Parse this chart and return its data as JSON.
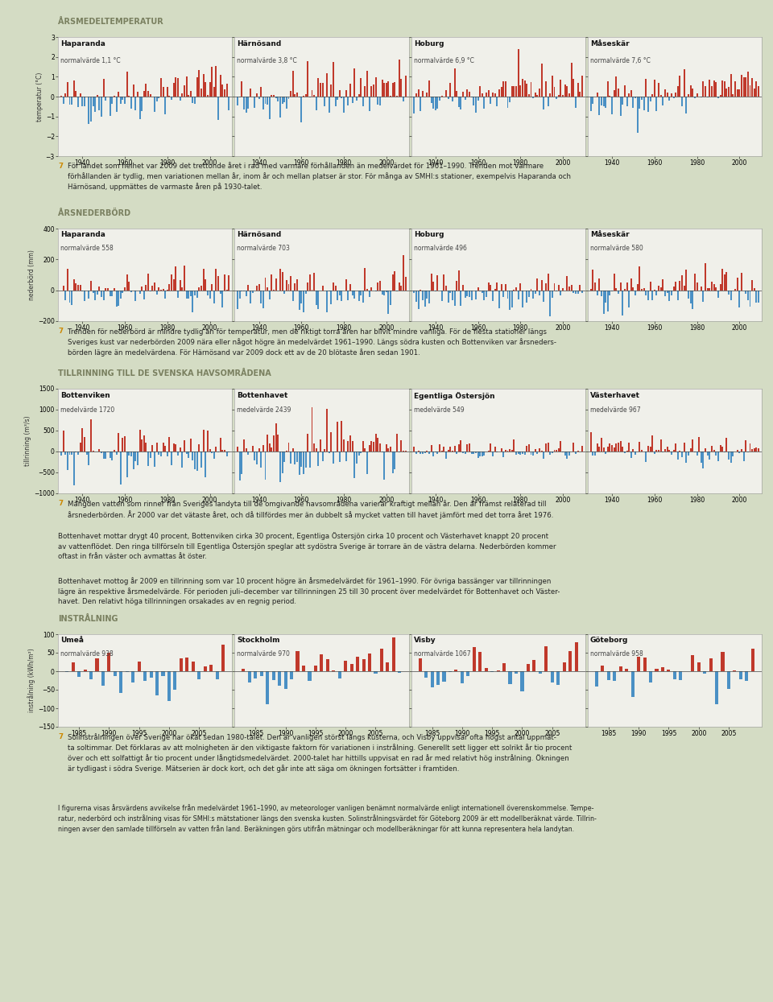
{
  "bg_color": "#d4dcc4",
  "chart_bg": "#f0f0ea",
  "red_color": "#c0392b",
  "blue_color": "#4a90c4",
  "title_color": "#7a8060",
  "text_color": "#222222",
  "section1_title": "ÅRSMEDELTEMPERATUR",
  "section1_ylabel": "temperatur (°C)",
  "section1_ylim": [
    -3,
    3
  ],
  "section1_yticks": [
    -3,
    -2,
    -1,
    0,
    1,
    2,
    3
  ],
  "section1_stations": [
    "Haparanda",
    "Härnösand",
    "Hoburg",
    "Måseskär"
  ],
  "section1_normals": [
    "normalvärde 1,1 °C",
    "normalvärde 3,8 °C",
    "normalvärde 6,9 °C",
    "normalvärde 7,6 °C"
  ],
  "section1_xticks": [
    1940,
    1960,
    1980,
    2000
  ],
  "section2_title": "ÅRSNEDERBÖRD",
  "section2_ylabel": "nederbörd (mm)",
  "section2_ylim": [
    -200,
    400
  ],
  "section2_yticks": [
    -200,
    0,
    200,
    400
  ],
  "section2_stations": [
    "Haparanda",
    "Härnösand",
    "Hoburg",
    "Måseskär"
  ],
  "section2_normals": [
    "normalvärde 558",
    "normalvärde 703",
    "normalvärde 496",
    "normalvärde 580"
  ],
  "section2_xticks": [
    1940,
    1960,
    1980,
    2000
  ],
  "section3_title": "TILLRINNING TILL DE SVENSKA HAVSOMRÅDENA",
  "section3_ylabel": "tillrinning (m³/s)",
  "section3_ylim": [
    -1000,
    1500
  ],
  "section3_yticks": [
    -1000,
    -500,
    0,
    500,
    1000,
    1500
  ],
  "section3_stations": [
    "Bottenviken",
    "Bottenhavet",
    "Egentliga Östersjön",
    "Västerhavet"
  ],
  "section3_normals": [
    "medelvärde 1720",
    "medelvärde 2439",
    "medelvärde 549",
    "medelvärde 967"
  ],
  "section3_xticks": [
    1940,
    1960,
    1980,
    2000
  ],
  "section4_title": "INSTRÅLNING",
  "section4_ylabel": "instrålning (kWh/m²)",
  "section4_ylim": [
    -150,
    100
  ],
  "section4_yticks": [
    -150,
    -100,
    -50,
    0,
    50,
    100
  ],
  "section4_stations": [
    "Umeå",
    "Stockholm",
    "Visby",
    "Göteborg"
  ],
  "section4_normals": [
    "normalvärde 938",
    "normalvärde 970",
    "normalvärde 1067",
    "normalvärde 958"
  ],
  "section4_xticks": [
    1985,
    1990,
    1995,
    2000,
    2005
  ],
  "caption1_text": "För landet som helhet var 2009 det trettonde året i rad med varmare förhållanden än medelvärdet för 1961–1990. Trenden mot varmare\nförhållanden är tydlig, men variationen mellan år, inom år och mellan platser är stor. För många av SMHI:s stationer, exempelvis Haparanda och\nHärnösand, uppmättes de varmaste åren på 1930-talet.",
  "caption2_text": "Trenden för nederbörd är mindre tydlig än för temperatur, men de riktigt torra åren har blivit mindre vanliga. För de flesta stationer längs\nSveriges kust var nederbörden 2009 nära eller något högre än medelvärdet 1961–1990. Längs södra kusten och Bottenviken var årsneders-\nbörden lägre än medelvärdena. För Härnösand var 2009 dock ett av de 20 blötaste åren sedan 1901.",
  "caption3_text_1": "Mängden vatten som rinner från Sveriges landyta till de omgivande havsområdena varierar kraftigt mellan år. Den är främst relaterad till\nårsnederbörden. År 2000 var det vätaste året, och då tillfördes mer än dubbelt så mycket vatten till havet jämfört med det torra året 1976.",
  "caption3_text_2": "Bottenhavet mottar drygt 40 procent, Bottenviken cirka 30 procent, Egentliga Östersjön cirka 10 procent och Västerhavet knappt 20 procent\nav vattenflödet. Den ringa tillförseln till Egentliga Östersjön speglar att sydöstra Sverige är torrare än de västra delarna. Nederbörden kommer\noftast in från väster och avmattas åt öster.",
  "caption3_text_3": "Bottenhavet mottog år 2009 en tillrinning som var 10 procent högre än årsmedelvärdet för 1961–1990. För övriga bassänger var tillrinningen\nlägre än respektive årsmedelvärde. För perioden juli–december var tillrinningen 25 till 30 procent över medelvärdet för Bottenhavet och Väster-\nhavet. Den relativt höga tillrinningen orsakades av en regnig period.",
  "caption4_text": "Solinstrålningen över Sverige har ökat sedan 1980-talet. Den är vanligen störst längs kusterna, och Visby uppvisar ofta högst antal uppmät-\nta soltimmar. Det förklaras av att molnigheten är den viktigaste faktorn för variationen i instrålning. Generellt sett ligger ett solrikt år tio procent\növer och ett solfattigt år tio procent under långtidsmedelvärdet. 2000-talet har hittills uppvisat en rad år med relativt hög instrålning. Ökningen\när tydligast i södra Sverige. Mätserien är dock kort, och det går inte att säga om ökningen fortsätter i framtiden.",
  "footer_text": "I figurerna visas årsvärdens avvikelse från medelvärdet 1961–1990, av meteorologer vanligen benämnt normalvärde enligt internationell överenskommelse. Tempe-\nratur, nederbörd och instrålning visas för SMHI:s mätstationer längs den svenska kusten. Solinstrålningsvärdet för Göteborg 2009 är ett modellberäknat värde. Tillrin-\nningen avser den samlade tillförseln av vatten från land. Beräkningen görs utifrån mätningar och modellberäkningar för att kunna representera hela landytan."
}
